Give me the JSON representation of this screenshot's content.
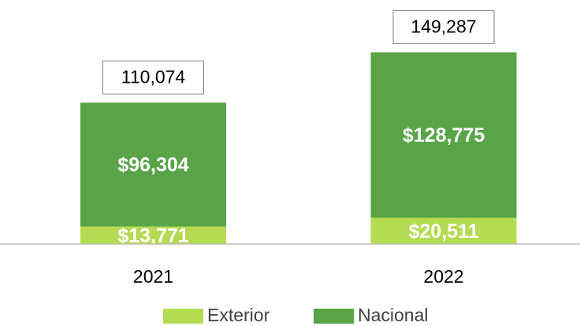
{
  "chart_data": {
    "type": "stacked_bar",
    "categories": [
      "2021",
      "2022"
    ],
    "series": [
      {
        "name": "Exterior",
        "color": "#b5db52",
        "values": [
          13771,
          20511
        ],
        "value_labels": [
          "$13,771",
          "$20,511"
        ]
      },
      {
        "name": "Nacional",
        "color": "#58a447",
        "values": [
          96304,
          128775
        ],
        "value_labels": [
          "$96,304",
          "$128,775"
        ]
      }
    ],
    "totals": {
      "values": [
        110074,
        149287
      ],
      "value_labels": [
        "110,074",
        "149,287"
      ]
    },
    "ylim": [
      0,
      190000
    ],
    "legend": "bottom"
  }
}
